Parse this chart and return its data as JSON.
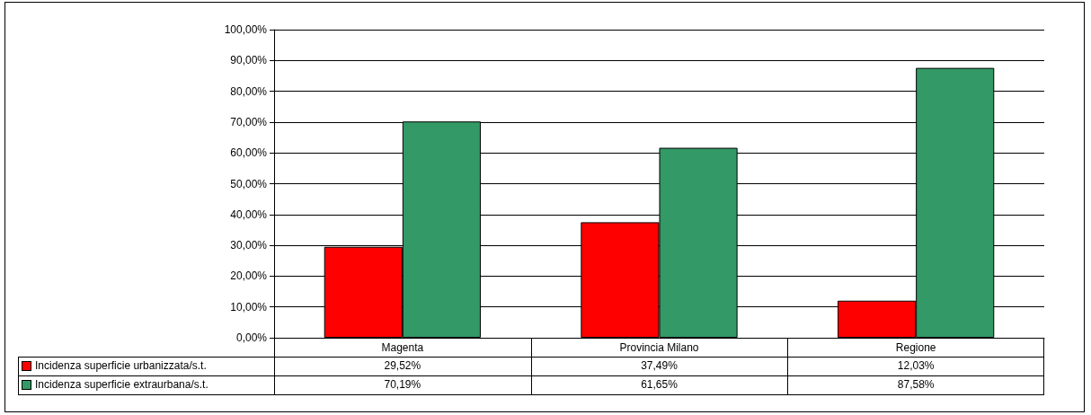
{
  "chart_data": {
    "type": "bar",
    "categories": [
      "Magenta",
      "Provincia Milano",
      "Regione"
    ],
    "series": [
      {
        "name": "Incidenza superficie urbanizzata/s.t.",
        "color": "#ff0000",
        "values": [
          29.52,
          37.49,
          12.03
        ],
        "value_labels": [
          "29,52%",
          "37,49%",
          "12,03%"
        ]
      },
      {
        "name": "Incidenza superficie extraurbana/s.t.",
        "color": "#339966",
        "values": [
          70.19,
          61.65,
          87.58
        ],
        "value_labels": [
          "70,19%",
          "61,65%",
          "87,58%"
        ]
      }
    ],
    "ylim": [
      0,
      100
    ],
    "yticks": [
      {
        "value": 0,
        "label": "0,00%"
      },
      {
        "value": 10,
        "label": "10,00%"
      },
      {
        "value": 20,
        "label": "20,00%"
      },
      {
        "value": 30,
        "label": "30,00%"
      },
      {
        "value": 40,
        "label": "40,00%"
      },
      {
        "value": 50,
        "label": "50,00%"
      },
      {
        "value": 60,
        "label": "60,00%"
      },
      {
        "value": 70,
        "label": "70,00%"
      },
      {
        "value": 80,
        "label": "80,00%"
      },
      {
        "value": 90,
        "label": "90,00%"
      },
      {
        "value": 100,
        "label": "100,00%"
      }
    ],
    "grid": "y",
    "legend": "bottom left"
  }
}
